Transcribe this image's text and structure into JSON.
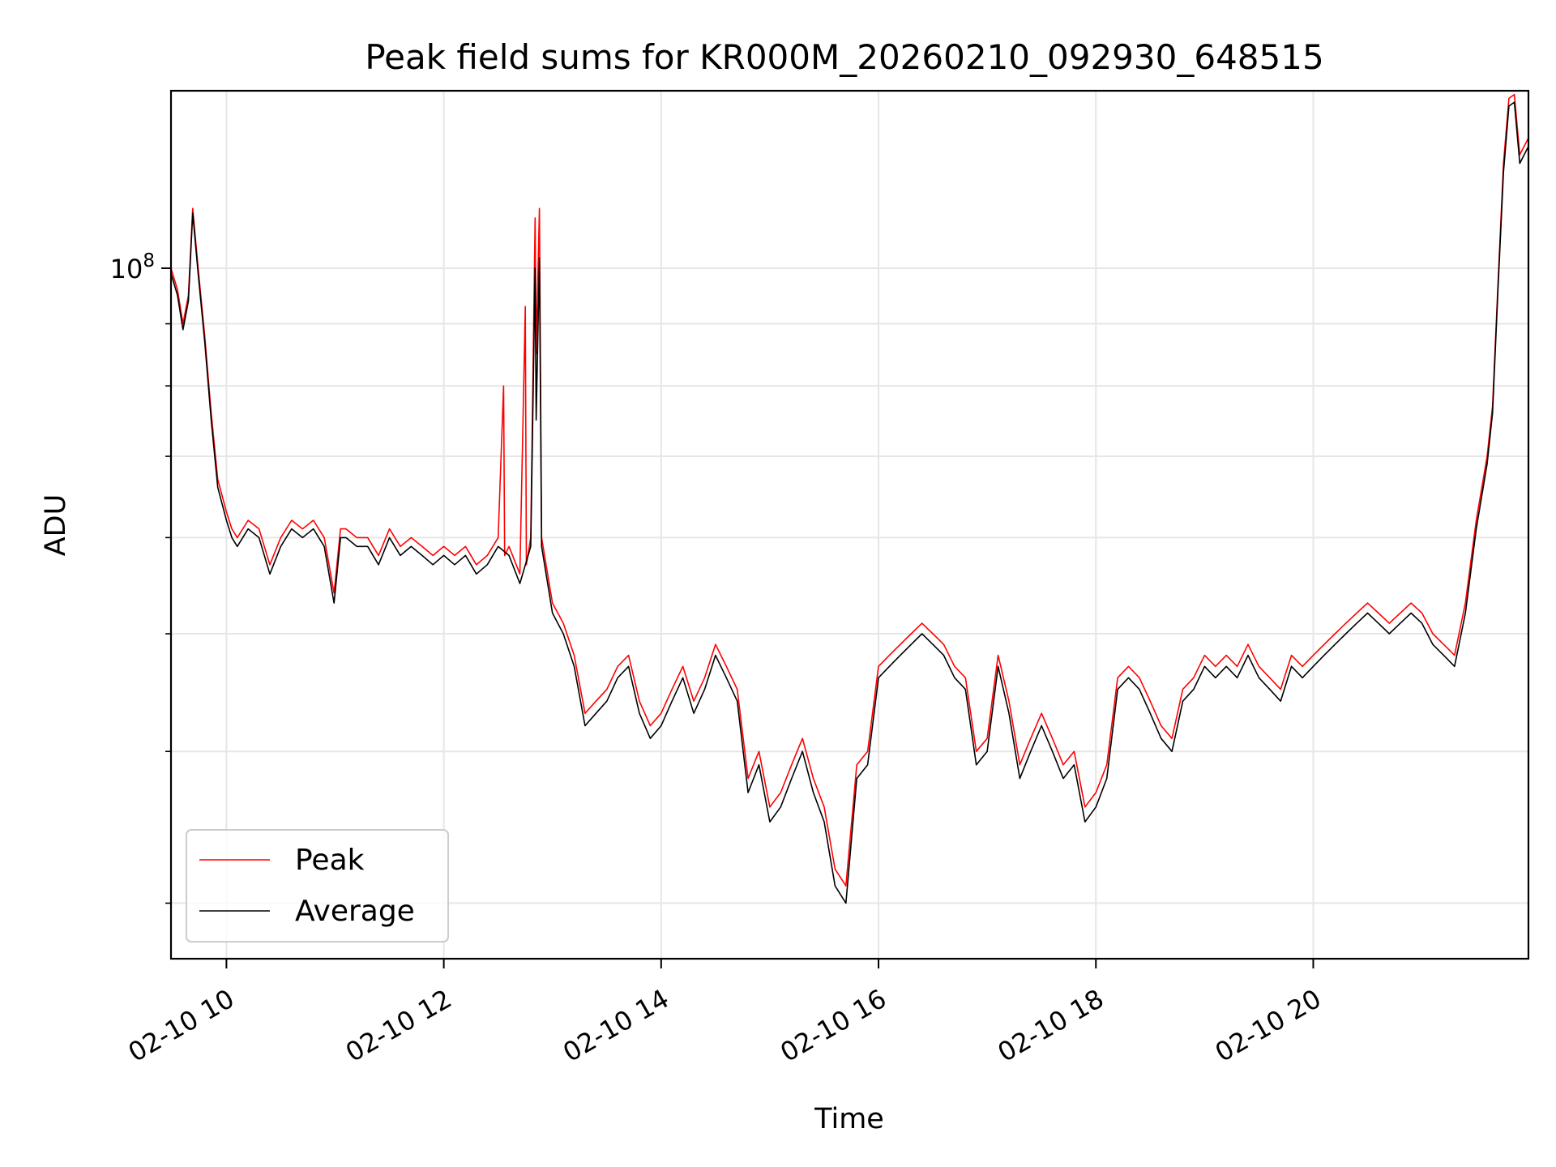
{
  "chart_data": {
    "type": "line",
    "title": "Peak field sums for KR000M_20260210_092930_648515",
    "xlabel": "Time",
    "ylabel": "ADU",
    "yscale": "log",
    "grid": true,
    "legend_position": "lower-left",
    "xlim": [
      9.49,
      21.98
    ],
    "ylim": [
      27000000,
      140000000
    ],
    "x_ticks": [
      {
        "value": 10,
        "label": "02-10 10"
      },
      {
        "value": 12,
        "label": "02-10 12"
      },
      {
        "value": 14,
        "label": "02-10 14"
      },
      {
        "value": 16,
        "label": "02-10 16"
      },
      {
        "value": 18,
        "label": "02-10 18"
      },
      {
        "value": 20,
        "label": "02-10 20"
      }
    ],
    "y_major_ticks": [
      {
        "value": 100000000,
        "label": "10",
        "exponent": "8"
      }
    ],
    "y_minor_ticks": [
      30000000,
      40000000,
      50000000,
      60000000,
      70000000,
      80000000,
      90000000
    ],
    "series": [
      {
        "name": "Peak",
        "color": "#ff0000",
        "x": [
          9.49,
          9.55,
          9.6,
          9.65,
          9.69,
          9.74,
          9.8,
          9.86,
          9.92,
          10.0,
          10.05,
          10.1,
          10.2,
          10.3,
          10.4,
          10.5,
          10.6,
          10.7,
          10.8,
          10.9,
          10.99,
          11.05,
          11.1,
          11.2,
          11.3,
          11.4,
          11.5,
          11.6,
          11.7,
          11.8,
          11.9,
          12.0,
          12.1,
          12.2,
          12.3,
          12.4,
          12.5,
          12.55,
          12.56,
          12.6,
          12.7,
          12.75,
          12.76,
          12.8,
          12.84,
          12.85,
          12.88,
          12.9,
          13.0,
          13.1,
          13.2,
          13.3,
          13.4,
          13.5,
          13.6,
          13.7,
          13.8,
          13.9,
          14.0,
          14.1,
          14.2,
          14.3,
          14.4,
          14.5,
          14.6,
          14.7,
          14.8,
          14.9,
          15.0,
          15.1,
          15.2,
          15.3,
          15.4,
          15.5,
          15.6,
          15.7,
          15.8,
          15.9,
          16.0,
          16.1,
          16.2,
          16.3,
          16.4,
          16.5,
          16.6,
          16.7,
          16.8,
          16.9,
          17.0,
          17.1,
          17.2,
          17.3,
          17.4,
          17.5,
          17.6,
          17.7,
          17.8,
          17.9,
          18.0,
          18.1,
          18.2,
          18.3,
          18.4,
          18.5,
          18.6,
          18.7,
          18.8,
          18.9,
          19.0,
          19.1,
          19.2,
          19.3,
          19.4,
          19.5,
          19.6,
          19.7,
          19.8,
          19.9,
          20.0,
          20.1,
          20.2,
          20.3,
          20.4,
          20.5,
          20.6,
          20.7,
          20.8,
          20.9,
          21.0,
          21.1,
          21.2,
          21.3,
          21.4,
          21.5,
          21.6,
          21.65,
          21.7,
          21.75,
          21.8,
          21.85,
          21.9,
          21.98
        ],
        "values": [
          100000000,
          96000000,
          90000000,
          95000000,
          112000000,
          100000000,
          88000000,
          76000000,
          67000000,
          63000000,
          61000000,
          60000000,
          62000000,
          61000000,
          57000000,
          60000000,
          62000000,
          61000000,
          62000000,
          60000000,
          54000000,
          61000000,
          61000000,
          60000000,
          60000000,
          58000000,
          61000000,
          59000000,
          60000000,
          59000000,
          58000000,
          59000000,
          58000000,
          59000000,
          57000000,
          58000000,
          60000000,
          80000000,
          58000000,
          59000000,
          56000000,
          93000000,
          57000000,
          60000000,
          110000000,
          85000000,
          112000000,
          60000000,
          53000000,
          51000000,
          48000000,
          43000000,
          44000000,
          45000000,
          47000000,
          48000000,
          44000000,
          42000000,
          43000000,
          45000000,
          47000000,
          44000000,
          46000000,
          49000000,
          47000000,
          45000000,
          38000000,
          40000000,
          36000000,
          37000000,
          39000000,
          41000000,
          38000000,
          36000000,
          32000000,
          31000000,
          39000000,
          40000000,
          47000000,
          48000000,
          49000000,
          50000000,
          51000000,
          50000000,
          49000000,
          47000000,
          46000000,
          40000000,
          41000000,
          48000000,
          44000000,
          39000000,
          41000000,
          43000000,
          41000000,
          39000000,
          40000000,
          36000000,
          37000000,
          39000000,
          46000000,
          47000000,
          46000000,
          44000000,
          42000000,
          41000000,
          45000000,
          46000000,
          48000000,
          47000000,
          48000000,
          47000000,
          49000000,
          47000000,
          46000000,
          45000000,
          48000000,
          47000000,
          48000000,
          49000000,
          50000000,
          51000000,
          52000000,
          53000000,
          52000000,
          51000000,
          52000000,
          53000000,
          52000000,
          50000000,
          49000000,
          48000000,
          53000000,
          62000000,
          70000000,
          77000000,
          97000000,
          122000000,
          138000000,
          139000000,
          124000000,
          128000000
        ]
      },
      {
        "name": "Average",
        "color": "#000000",
        "x": [
          9.49,
          9.55,
          9.6,
          9.65,
          9.69,
          9.74,
          9.8,
          9.86,
          9.92,
          10.0,
          10.05,
          10.1,
          10.2,
          10.3,
          10.4,
          10.5,
          10.6,
          10.7,
          10.8,
          10.9,
          10.99,
          11.05,
          11.1,
          11.2,
          11.3,
          11.4,
          11.5,
          11.6,
          11.7,
          11.8,
          11.9,
          12.0,
          12.1,
          12.2,
          12.3,
          12.4,
          12.5,
          12.6,
          12.7,
          12.8,
          12.84,
          12.85,
          12.88,
          12.9,
          13.0,
          13.1,
          13.2,
          13.3,
          13.4,
          13.5,
          13.6,
          13.7,
          13.8,
          13.9,
          14.0,
          14.1,
          14.2,
          14.3,
          14.4,
          14.5,
          14.6,
          14.7,
          14.8,
          14.9,
          15.0,
          15.1,
          15.2,
          15.3,
          15.4,
          15.5,
          15.6,
          15.7,
          15.8,
          15.9,
          16.0,
          16.1,
          16.2,
          16.3,
          16.4,
          16.5,
          16.6,
          16.7,
          16.8,
          16.9,
          17.0,
          17.1,
          17.2,
          17.3,
          17.4,
          17.5,
          17.6,
          17.7,
          17.8,
          17.9,
          18.0,
          18.1,
          18.2,
          18.3,
          18.4,
          18.5,
          18.6,
          18.7,
          18.8,
          18.9,
          19.0,
          19.1,
          19.2,
          19.3,
          19.4,
          19.5,
          19.6,
          19.7,
          19.8,
          19.9,
          20.0,
          20.1,
          20.2,
          20.3,
          20.4,
          20.5,
          20.6,
          20.7,
          20.8,
          20.9,
          21.0,
          21.1,
          21.2,
          21.3,
          21.4,
          21.5,
          21.6,
          21.65,
          21.7,
          21.75,
          21.8,
          21.85,
          21.9,
          21.98
        ],
        "values": [
          99000000,
          95000000,
          89000000,
          94000000,
          111000000,
          99000000,
          87000000,
          75000000,
          66000000,
          62000000,
          60000000,
          59000000,
          61000000,
          60000000,
          56000000,
          59000000,
          61000000,
          60000000,
          61000000,
          59000000,
          53000000,
          60000000,
          60000000,
          59000000,
          59000000,
          57000000,
          60000000,
          58000000,
          59000000,
          58000000,
          57000000,
          58000000,
          57000000,
          58000000,
          56000000,
          57000000,
          59000000,
          58000000,
          55000000,
          59000000,
          100000000,
          75000000,
          102000000,
          59000000,
          52000000,
          50000000,
          47000000,
          42000000,
          43000000,
          44000000,
          46000000,
          47000000,
          43000000,
          41000000,
          42000000,
          44000000,
          46000000,
          43000000,
          45000000,
          48000000,
          46000000,
          44000000,
          37000000,
          39000000,
          35000000,
          36000000,
          38000000,
          40000000,
          37000000,
          35000000,
          31000000,
          30000000,
          38000000,
          39000000,
          46000000,
          47000000,
          48000000,
          49000000,
          50000000,
          49000000,
          48000000,
          46000000,
          45000000,
          39000000,
          40000000,
          47000000,
          43000000,
          38000000,
          40000000,
          42000000,
          40000000,
          38000000,
          39000000,
          35000000,
          36000000,
          38000000,
          45000000,
          46000000,
          45000000,
          43000000,
          41000000,
          40000000,
          44000000,
          45000000,
          47000000,
          46000000,
          47000000,
          46000000,
          48000000,
          46000000,
          45000000,
          44000000,
          47000000,
          46000000,
          47000000,
          48000000,
          49000000,
          50000000,
          51000000,
          52000000,
          51000000,
          50000000,
          51000000,
          52000000,
          51000000,
          49000000,
          48000000,
          47000000,
          52000000,
          61000000,
          69000000,
          76000000,
          96000000,
          120000000,
          136000000,
          137000000,
          122000000,
          126000000
        ]
      }
    ]
  }
}
